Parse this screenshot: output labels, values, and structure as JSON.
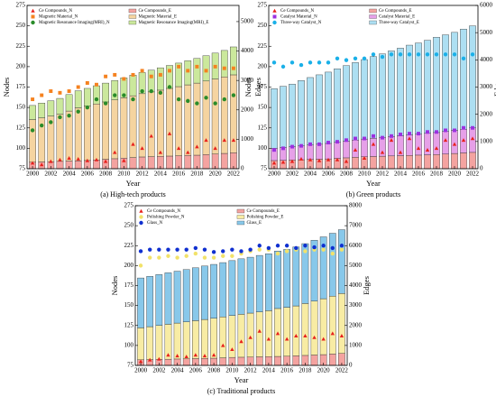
{
  "chart_data": [
    {
      "type": "combo",
      "caption": "(a) High-tech products",
      "xlabel": "Year",
      "ylabel": "Nodes",
      "y2label": "Edges",
      "x": [
        2000,
        2001,
        2002,
        2003,
        2004,
        2005,
        2006,
        2007,
        2008,
        2009,
        2010,
        2011,
        2012,
        2013,
        2014,
        2015,
        2016,
        2017,
        2018,
        2019,
        2020,
        2021,
        2022
      ],
      "xlim": [
        1999.4,
        2022.6
      ],
      "xticks": [
        2000,
        2002,
        2004,
        2006,
        2008,
        2010,
        2012,
        2014,
        2016,
        2018,
        2020,
        2022
      ],
      "ylim": [
        75,
        275
      ],
      "yticks": [
        75,
        100,
        125,
        150,
        175,
        200,
        225,
        250,
        275
      ],
      "y2lim": [
        0,
        5550
      ],
      "y2ticks": [
        0,
        1000,
        2000,
        3000,
        4000,
        5000
      ],
      "series": [
        {
          "name": "Ce Compounds_N",
          "kind": "scatter",
          "marker": "triangle",
          "color": "#e8201c",
          "axis": "y",
          "values": [
            82,
            80,
            84,
            86,
            88,
            87,
            85,
            86,
            84,
            95,
            85,
            105,
            100,
            115,
            95,
            118,
            100,
            95,
            102,
            110,
            100,
            110,
            110
          ]
        },
        {
          "name": "Magnetic Material_N",
          "kind": "scatter",
          "marker": "square",
          "color": "#f58220",
          "axis": "y",
          "values": [
            160,
            165,
            170,
            168,
            170,
            175,
            180,
            178,
            188,
            190,
            185,
            190,
            195,
            188,
            190,
            195,
            200,
            195,
            200,
            195,
            200,
            198,
            198
          ]
        },
        {
          "name": "Magnetic Resonance Imaging(MRI)_N",
          "kind": "scatter",
          "marker": "circle",
          "color": "#2a8c2a",
          "axis": "y",
          "values": [
            122,
            128,
            132,
            138,
            140,
            145,
            150,
            160,
            155,
            165,
            165,
            160,
            170,
            170,
            168,
            175,
            160,
            158,
            155,
            162,
            155,
            160,
            165
          ]
        },
        {
          "name": "Ce Compounds_E",
          "kind": "bar",
          "color": "#f4a3a0",
          "axis": "y2",
          "values": [
            220,
            230,
            240,
            250,
            260,
            270,
            280,
            300,
            320,
            340,
            360,
            380,
            400,
            410,
            420,
            430,
            440,
            450,
            460,
            480,
            500,
            520,
            540
          ]
        },
        {
          "name": "Magnetic Material_E",
          "kind": "bar",
          "color": "#f5d4a0",
          "axis": "y2",
          "values": [
            1450,
            1500,
            1550,
            1600,
            1700,
            1800,
            1850,
            1900,
            1950,
            2000,
            2050,
            2100,
            2150,
            2200,
            2250,
            2300,
            2350,
            2400,
            2450,
            2500,
            2550,
            2600,
            2650
          ]
        },
        {
          "name": "Magnetic Resonance Imaging(MRI)_E",
          "kind": "bar",
          "color": "#cbe89c",
          "axis": "y2",
          "values": [
            480,
            500,
            520,
            540,
            560,
            580,
            600,
            620,
            640,
            660,
            680,
            700,
            720,
            740,
            760,
            780,
            800,
            820,
            840,
            860,
            880,
            900,
            950
          ]
        }
      ]
    },
    {
      "type": "combo",
      "caption": "(b) Green products",
      "xlabel": "Year",
      "ylabel": "Nodes",
      "y2label": "Edges",
      "x": [
        2000,
        2001,
        2002,
        2003,
        2004,
        2005,
        2006,
        2007,
        2008,
        2009,
        2010,
        2011,
        2012,
        2013,
        2014,
        2015,
        2016,
        2017,
        2018,
        2019,
        2020,
        2021,
        2022
      ],
      "xlim": [
        1999.4,
        2022.6
      ],
      "xticks": [
        2000,
        2002,
        2004,
        2006,
        2008,
        2010,
        2012,
        2014,
        2016,
        2018,
        2020,
        2022
      ],
      "ylim": [
        75,
        275
      ],
      "yticks": [
        75,
        100,
        125,
        150,
        175,
        200,
        225,
        250,
        275
      ],
      "y2lim": [
        0,
        6000
      ],
      "y2ticks": [
        0,
        1000,
        2000,
        3000,
        4000,
        5000,
        6000
      ],
      "series": [
        {
          "name": "Ce Compounds_N",
          "kind": "scatter",
          "marker": "triangle",
          "color": "#e8201c",
          "axis": "y",
          "values": [
            82,
            83,
            84,
            87,
            86,
            85,
            86,
            86,
            84,
            98,
            88,
            105,
            95,
            110,
            95,
            112,
            100,
            98,
            100,
            110,
            105,
            110,
            112
          ]
        },
        {
          "name": "Catalyst Material_N",
          "kind": "scatter",
          "marker": "square",
          "color": "#9b30e0",
          "axis": "y",
          "values": [
            98,
            100,
            102,
            103,
            105,
            105,
            107,
            108,
            110,
            112,
            112,
            115,
            113,
            115,
            117,
            118,
            118,
            120,
            120,
            122,
            122,
            125,
            125
          ]
        },
        {
          "name": "Three-way Catalyst_N",
          "kind": "scatter",
          "marker": "circle",
          "color": "#1ab0e8",
          "axis": "y",
          "values": [
            205,
            200,
            205,
            202,
            205,
            205,
            205,
            210,
            208,
            210,
            210,
            215,
            212,
            215,
            215,
            215,
            215,
            215,
            215,
            215,
            215,
            210,
            215
          ]
        },
        {
          "name": "Ce Compounds_E",
          "kind": "bar",
          "color": "#f4a3a0",
          "axis": "y2",
          "values": [
            300,
            310,
            320,
            330,
            340,
            350,
            360,
            380,
            400,
            420,
            440,
            450,
            460,
            470,
            480,
            490,
            500,
            510,
            520,
            540,
            560,
            580,
            600
          ]
        },
        {
          "name": "Catalyst Material_E",
          "kind": "bar",
          "color": "#e6a0e8",
          "axis": "y2",
          "values": [
            450,
            470,
            490,
            510,
            530,
            550,
            570,
            590,
            610,
            630,
            650,
            670,
            690,
            710,
            730,
            750,
            770,
            790,
            810,
            830,
            850,
            870,
            900
          ]
        },
        {
          "name": "Three-way Catalyst_E",
          "kind": "bar",
          "color": "#addff2",
          "axis": "y2",
          "values": [
            2190,
            2250,
            2300,
            2400,
            2480,
            2550,
            2620,
            2700,
            2780,
            2850,
            2920,
            3000,
            3070,
            3150,
            3220,
            3300,
            3350,
            3420,
            3500,
            3550,
            3600,
            3680,
            3750
          ]
        }
      ]
    },
    {
      "type": "combo",
      "caption": "(c) Traditional products",
      "xlabel": "Year",
      "ylabel": "Nodes",
      "y2label": "Edges",
      "x": [
        2000,
        2001,
        2002,
        2003,
        2004,
        2005,
        2006,
        2007,
        2008,
        2009,
        2010,
        2011,
        2012,
        2013,
        2014,
        2015,
        2016,
        2017,
        2018,
        2019,
        2020,
        2021,
        2022
      ],
      "xlim": [
        1999.4,
        2022.6
      ],
      "xticks": [
        2000,
        2002,
        2004,
        2006,
        2008,
        2010,
        2012,
        2014,
        2016,
        2018,
        2020,
        2022
      ],
      "ylim": [
        75,
        275
      ],
      "yticks": [
        75,
        100,
        125,
        150,
        175,
        200,
        225,
        250,
        275
      ],
      "y2lim": [
        0,
        8000
      ],
      "y2ticks": [
        0,
        1000,
        2000,
        3000,
        4000,
        5000,
        6000,
        7000,
        8000
      ],
      "series": [
        {
          "name": "Ce Compounds_N",
          "kind": "scatter",
          "marker": "triangle",
          "color": "#e8201c",
          "axis": "y",
          "values": [
            80,
            82,
            83,
            88,
            87,
            86,
            88,
            87,
            88,
            100,
            95,
            105,
            110,
            118,
            108,
            115,
            108,
            112,
            112,
            110,
            108,
            115,
            112
          ]
        },
        {
          "name": "Polishing Powder_N",
          "kind": "scatter",
          "marker": "circle",
          "color": "#f2e26a",
          "axis": "y",
          "values": [
            200,
            210,
            210,
            212,
            210,
            212,
            215,
            210,
            210,
            212,
            212,
            215,
            218,
            220,
            220,
            215,
            218,
            220,
            218,
            220,
            220,
            215,
            220
          ]
        },
        {
          "name": "Glass_N",
          "kind": "scatter",
          "marker": "circle",
          "color": "#1030d0",
          "axis": "y",
          "values": [
            218,
            220,
            220,
            220,
            220,
            220,
            222,
            220,
            217,
            218,
            220,
            218,
            220,
            225,
            222,
            225,
            225,
            222,
            225,
            223,
            225,
            222,
            225
          ]
        },
        {
          "name": "Ce Compounds_E",
          "kind": "bar",
          "color": "#f4a3a0",
          "axis": "y2",
          "values": [
            280,
            290,
            300,
            310,
            320,
            330,
            340,
            350,
            360,
            380,
            400,
            410,
            420,
            430,
            440,
            450,
            460,
            480,
            500,
            520,
            540,
            570,
            600
          ]
        },
        {
          "name": "Polishing Powder_E",
          "kind": "bar",
          "color": "#f8eca4",
          "axis": "y2",
          "values": [
            1600,
            1650,
            1700,
            1750,
            1800,
            1850,
            1900,
            1950,
            2000,
            2050,
            2100,
            2150,
            2200,
            2250,
            2300,
            2400,
            2450,
            2500,
            2600,
            2700,
            2800,
            2900,
            3000
          ]
        },
        {
          "name": "Glass_E",
          "kind": "bar",
          "color": "#88c8ea",
          "axis": "y2",
          "values": [
            2500,
            2520,
            2550,
            2580,
            2600,
            2620,
            2650,
            2680,
            2700,
            2720,
            2750,
            2780,
            2800,
            2830,
            2850,
            2880,
            2900,
            2950,
            3000,
            3050,
            3100,
            3150,
            3200
          ]
        }
      ]
    }
  ]
}
